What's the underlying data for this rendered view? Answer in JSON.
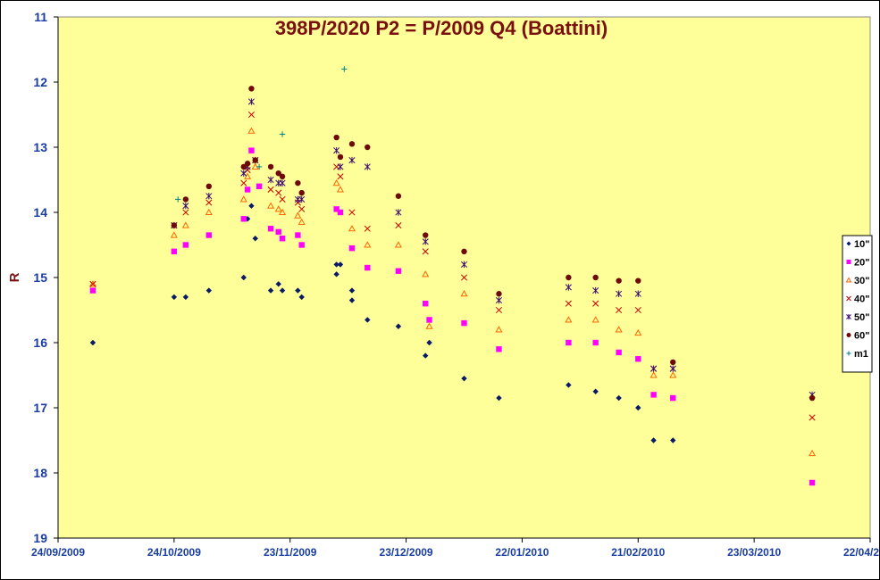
{
  "chart_data": {
    "type": "scatter",
    "title": "398P/2020 P2 = P/2009 Q4 (Boattini)",
    "xlabel": "",
    "ylabel": "R",
    "x_axis": {
      "type": "date",
      "min": "24/09/2009",
      "max": "22/04/2010",
      "ticks": [
        "24/09/2009",
        "24/10/2009",
        "23/11/2009",
        "23/12/2009",
        "22/01/2010",
        "21/02/2010",
        "23/03/2010",
        "22/04/2010"
      ]
    },
    "y_axis": {
      "min": 11,
      "max": 19,
      "inverted": true,
      "ticks": [
        11,
        12,
        13,
        14,
        15,
        16,
        17,
        18,
        19
      ]
    },
    "grid": false,
    "plot_background": "#ffff99",
    "legend_position": "right",
    "series": [
      {
        "name": "10\"",
        "marker": "diamond",
        "color": "#0a1a66",
        "points": [
          [
            "2009-10-03",
            16.0
          ],
          [
            "2009-10-24",
            15.3
          ],
          [
            "2009-10-27",
            15.3
          ],
          [
            "2009-11-02",
            15.2
          ],
          [
            "2009-11-11",
            15.0
          ],
          [
            "2009-11-12",
            14.1
          ],
          [
            "2009-11-13",
            13.9
          ],
          [
            "2009-11-14",
            14.4
          ],
          [
            "2009-11-18",
            15.2
          ],
          [
            "2009-11-20",
            15.1
          ],
          [
            "2009-11-21",
            15.2
          ],
          [
            "2009-11-25",
            15.2
          ],
          [
            "2009-11-26",
            15.3
          ],
          [
            "2009-12-05",
            14.8
          ],
          [
            "2009-12-05",
            14.95
          ],
          [
            "2009-12-06",
            14.8
          ],
          [
            "2009-12-09",
            15.2
          ],
          [
            "2009-12-09",
            15.35
          ],
          [
            "2009-12-13",
            15.65
          ],
          [
            "2009-12-21",
            15.75
          ],
          [
            "2009-12-28",
            16.2
          ],
          [
            "2009-12-29",
            16.0
          ],
          [
            "2010-01-07",
            16.55
          ],
          [
            "2010-01-16",
            16.85
          ],
          [
            "2010-02-03",
            16.65
          ],
          [
            "2010-02-10",
            16.75
          ],
          [
            "2010-02-16",
            16.85
          ],
          [
            "2010-02-21",
            17.0
          ],
          [
            "2010-02-25",
            17.5
          ],
          [
            "2010-03-02",
            17.5
          ]
        ]
      },
      {
        "name": "20\"",
        "marker": "square",
        "color": "#ff00ff",
        "points": [
          [
            "2009-10-03",
            15.2
          ],
          [
            "2009-10-24",
            14.6
          ],
          [
            "2009-10-27",
            14.5
          ],
          [
            "2009-11-02",
            14.35
          ],
          [
            "2009-11-11",
            14.1
          ],
          [
            "2009-11-12",
            13.65
          ],
          [
            "2009-11-13",
            13.05
          ],
          [
            "2009-11-15",
            13.6
          ],
          [
            "2009-11-18",
            14.25
          ],
          [
            "2009-11-20",
            14.3
          ],
          [
            "2009-11-21",
            14.4
          ],
          [
            "2009-11-25",
            14.35
          ],
          [
            "2009-11-26",
            14.5
          ],
          [
            "2009-12-05",
            13.95
          ],
          [
            "2009-12-06",
            14.0
          ],
          [
            "2009-12-09",
            14.55
          ],
          [
            "2009-12-13",
            14.85
          ],
          [
            "2009-12-21",
            14.9
          ],
          [
            "2009-12-28",
            15.4
          ],
          [
            "2009-12-29",
            15.65
          ],
          [
            "2010-01-07",
            15.7
          ],
          [
            "2010-01-16",
            16.1
          ],
          [
            "2010-02-03",
            16.0
          ],
          [
            "2010-02-10",
            16.0
          ],
          [
            "2010-02-16",
            16.15
          ],
          [
            "2010-02-21",
            16.25
          ],
          [
            "2010-02-25",
            16.8
          ],
          [
            "2010-03-02",
            16.85
          ],
          [
            "2010-04-07",
            18.15
          ]
        ]
      },
      {
        "name": "30\"",
        "marker": "triangle",
        "color": "#ff6600",
        "points": [
          [
            "2009-10-03",
            15.1
          ],
          [
            "2009-10-24",
            14.35
          ],
          [
            "2009-10-27",
            14.2
          ],
          [
            "2009-11-02",
            14.0
          ],
          [
            "2009-11-11",
            13.8
          ],
          [
            "2009-11-12",
            13.45
          ],
          [
            "2009-11-13",
            12.75
          ],
          [
            "2009-11-14",
            13.3
          ],
          [
            "2009-11-18",
            13.9
          ],
          [
            "2009-11-20",
            13.95
          ],
          [
            "2009-11-21",
            14.0
          ],
          [
            "2009-11-25",
            14.05
          ],
          [
            "2009-11-26",
            14.15
          ],
          [
            "2009-12-05",
            13.55
          ],
          [
            "2009-12-06",
            13.65
          ],
          [
            "2009-12-09",
            14.25
          ],
          [
            "2009-12-13",
            14.5
          ],
          [
            "2009-12-21",
            14.5
          ],
          [
            "2009-12-28",
            14.95
          ],
          [
            "2009-12-29",
            15.75
          ],
          [
            "2010-01-07",
            15.25
          ],
          [
            "2010-01-16",
            15.8
          ],
          [
            "2010-02-03",
            15.65
          ],
          [
            "2010-02-10",
            15.65
          ],
          [
            "2010-02-16",
            15.8
          ],
          [
            "2010-02-21",
            15.85
          ],
          [
            "2010-02-25",
            16.5
          ],
          [
            "2010-03-02",
            16.5
          ],
          [
            "2010-04-07",
            17.7
          ]
        ]
      },
      {
        "name": "40\"",
        "marker": "x",
        "color": "#cc0000",
        "points": [
          [
            "2009-10-03",
            15.1
          ],
          [
            "2009-10-24",
            14.2
          ],
          [
            "2009-10-27",
            14.0
          ],
          [
            "2009-11-02",
            13.85
          ],
          [
            "2009-11-11",
            13.55
          ],
          [
            "2009-11-12",
            13.35
          ],
          [
            "2009-11-13",
            12.5
          ],
          [
            "2009-11-14",
            13.2
          ],
          [
            "2009-11-18",
            13.65
          ],
          [
            "2009-11-20",
            13.7
          ],
          [
            "2009-11-21",
            13.8
          ],
          [
            "2009-11-25",
            13.85
          ],
          [
            "2009-11-26",
            13.95
          ],
          [
            "2009-12-05",
            13.3
          ],
          [
            "2009-12-06",
            13.45
          ],
          [
            "2009-12-09",
            14.0
          ],
          [
            "2009-12-13",
            14.25
          ],
          [
            "2009-12-21",
            14.2
          ],
          [
            "2009-12-28",
            14.6
          ],
          [
            "2010-01-07",
            15.0
          ],
          [
            "2010-01-16",
            15.5
          ],
          [
            "2010-02-03",
            15.4
          ],
          [
            "2010-02-10",
            15.4
          ],
          [
            "2010-02-16",
            15.5
          ],
          [
            "2010-02-21",
            15.5
          ],
          [
            "2010-02-25",
            16.4
          ],
          [
            "2010-03-02",
            16.4
          ],
          [
            "2010-04-07",
            17.15
          ]
        ]
      },
      {
        "name": "50\"",
        "marker": "star",
        "color": "#3a0a6e",
        "points": [
          [
            "2009-10-24",
            14.2
          ],
          [
            "2009-10-27",
            13.9
          ],
          [
            "2009-11-02",
            13.75
          ],
          [
            "2009-11-11",
            13.4
          ],
          [
            "2009-11-12",
            13.3
          ],
          [
            "2009-11-13",
            12.3
          ],
          [
            "2009-11-14",
            13.2
          ],
          [
            "2009-11-18",
            13.5
          ],
          [
            "2009-11-20",
            13.55
          ],
          [
            "2009-11-21",
            13.55
          ],
          [
            "2009-11-25",
            13.8
          ],
          [
            "2009-11-26",
            13.8
          ],
          [
            "2009-12-05",
            13.05
          ],
          [
            "2009-12-06",
            13.3
          ],
          [
            "2009-12-09",
            13.2
          ],
          [
            "2009-12-13",
            13.3
          ],
          [
            "2009-12-21",
            14.0
          ],
          [
            "2009-12-28",
            14.45
          ],
          [
            "2010-01-07",
            14.8
          ],
          [
            "2010-01-16",
            15.35
          ],
          [
            "2010-02-03",
            15.15
          ],
          [
            "2010-02-10",
            15.2
          ],
          [
            "2010-02-16",
            15.25
          ],
          [
            "2010-02-21",
            15.25
          ],
          [
            "2010-02-25",
            16.4
          ],
          [
            "2010-03-02",
            16.4
          ],
          [
            "2010-04-07",
            16.8
          ]
        ]
      },
      {
        "name": "60\"",
        "marker": "circle",
        "color": "#6e0a0a",
        "points": [
          [
            "2009-10-24",
            14.2
          ],
          [
            "2009-10-27",
            13.8
          ],
          [
            "2009-11-02",
            13.6
          ],
          [
            "2009-11-11",
            13.3
          ],
          [
            "2009-11-12",
            13.25
          ],
          [
            "2009-11-13",
            12.1
          ],
          [
            "2009-11-14",
            13.2
          ],
          [
            "2009-11-18",
            13.3
          ],
          [
            "2009-11-20",
            13.4
          ],
          [
            "2009-11-21",
            13.45
          ],
          [
            "2009-11-25",
            13.55
          ],
          [
            "2009-11-26",
            13.7
          ],
          [
            "2009-12-05",
            12.85
          ],
          [
            "2009-12-06",
            13.15
          ],
          [
            "2009-12-09",
            12.95
          ],
          [
            "2009-12-13",
            13.0
          ],
          [
            "2009-12-21",
            13.75
          ],
          [
            "2009-12-28",
            14.35
          ],
          [
            "2010-01-07",
            14.6
          ],
          [
            "2010-01-16",
            15.25
          ],
          [
            "2010-02-03",
            15.0
          ],
          [
            "2010-02-10",
            15.0
          ],
          [
            "2010-02-16",
            15.05
          ],
          [
            "2010-02-21",
            15.05
          ],
          [
            "2010-03-02",
            16.3
          ],
          [
            "2010-04-07",
            16.85
          ]
        ]
      },
      {
        "name": "m1",
        "marker": "plus",
        "color": "#008080",
        "points": [
          [
            "2009-10-25",
            13.8
          ],
          [
            "2009-11-15",
            13.3
          ],
          [
            "2009-11-21",
            12.8
          ],
          [
            "2009-12-07",
            11.8
          ]
        ]
      }
    ]
  }
}
